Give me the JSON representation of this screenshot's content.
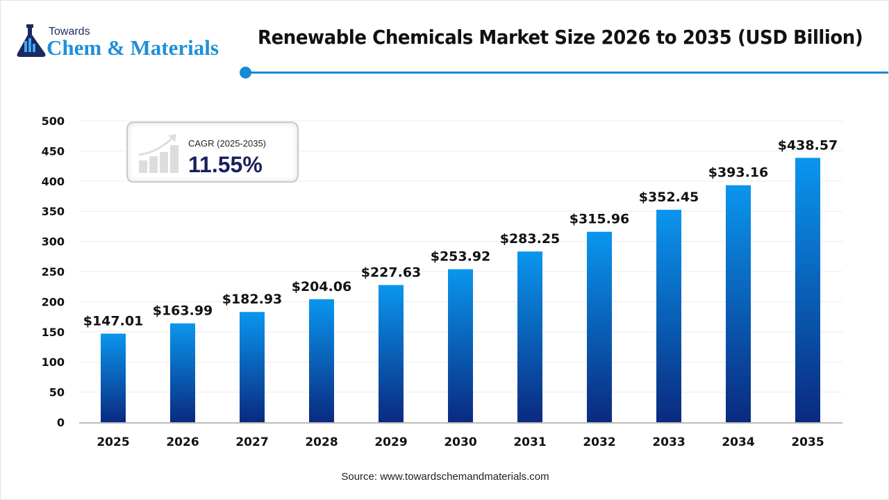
{
  "logo": {
    "line1": "Towards",
    "line2": "Chem & Materials"
  },
  "header": {
    "title": "Renewable Chemicals Market Size 2026 to 2035 (USD Billion)"
  },
  "cagr": {
    "label": "CAGR (2025-2035)",
    "value": "11.55%"
  },
  "source": "Source: www.towardschemandmaterials.com",
  "colors": {
    "bar_top": "#0a96ee",
    "bar_bottom": "#0a2a80",
    "accent": "#1689d6",
    "cagr_text": "#1a1f5c"
  },
  "chart_data": {
    "type": "bar",
    "title": "Renewable Chemicals Market Size 2026 to 2035 (USD Billion)",
    "categories": [
      "2025",
      "2026",
      "2027",
      "2028",
      "2029",
      "2030",
      "2031",
      "2032",
      "2033",
      "2034",
      "2035"
    ],
    "values": [
      147.01,
      163.99,
      182.93,
      204.06,
      227.63,
      253.92,
      283.25,
      315.96,
      352.45,
      393.16,
      438.57
    ],
    "data_labels": [
      "$147.01",
      "$163.99",
      "$182.93",
      "$204.06",
      "$227.63",
      "$253.92",
      "$283.25",
      "$315.96",
      "$352.45",
      "$393.16",
      "$438.57"
    ],
    "yticks": [
      "0",
      "50",
      "100",
      "150",
      "200",
      "250",
      "300",
      "350",
      "400",
      "450",
      "500"
    ],
    "ylim": [
      0,
      500
    ],
    "grid": true,
    "xlabel": "",
    "ylabel": ""
  }
}
